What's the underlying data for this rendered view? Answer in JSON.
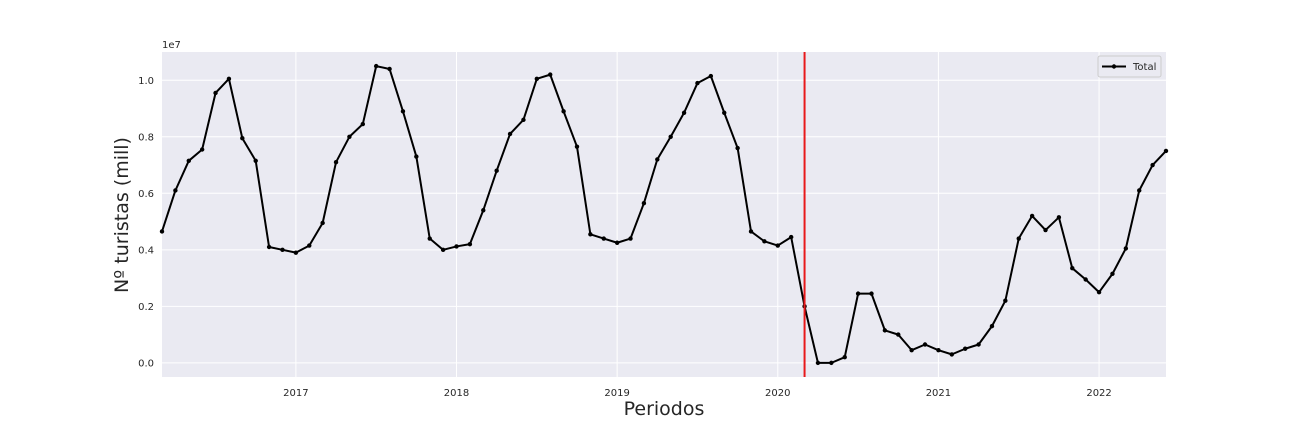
{
  "chart_data": {
    "type": "line",
    "xlabel": "Periodos",
    "ylabel": "Nº turistas (mill)",
    "offset_text": "1e7",
    "x_ticks": [
      "2017",
      "2018",
      "2019",
      "2020",
      "2021",
      "2022"
    ],
    "y_ticks": [
      "0.0",
      "0.2",
      "0.4",
      "0.6",
      "0.8",
      "1.0"
    ],
    "xlim": [
      "2016-03",
      "2022-06"
    ],
    "ylim": [
      -0.05,
      1.1
    ],
    "grid": true,
    "legend_position": "top-right",
    "vertical_marker": {
      "x": "2020-03",
      "color": "#e8191b"
    },
    "colors": {
      "background": "#eaeaf2",
      "grid": "#ffffff",
      "line": "#000000"
    },
    "series": [
      {
        "name": "Total",
        "x": [
          "2016-03",
          "2016-04",
          "2016-05",
          "2016-06",
          "2016-07",
          "2016-08",
          "2016-09",
          "2016-10",
          "2016-11",
          "2016-12",
          "2017-01",
          "2017-02",
          "2017-03",
          "2017-04",
          "2017-05",
          "2017-06",
          "2017-07",
          "2017-08",
          "2017-09",
          "2017-10",
          "2017-11",
          "2017-12",
          "2018-01",
          "2018-02",
          "2018-03",
          "2018-04",
          "2018-05",
          "2018-06",
          "2018-07",
          "2018-08",
          "2018-09",
          "2018-10",
          "2018-11",
          "2018-12",
          "2019-01",
          "2019-02",
          "2019-03",
          "2019-04",
          "2019-05",
          "2019-06",
          "2019-07",
          "2019-08",
          "2019-09",
          "2019-10",
          "2019-11",
          "2019-12",
          "2020-01",
          "2020-02",
          "2020-03",
          "2020-04",
          "2020-05",
          "2020-06",
          "2020-07",
          "2020-08",
          "2020-09",
          "2020-10",
          "2020-11",
          "2020-12",
          "2021-01",
          "2021-02",
          "2021-03",
          "2021-04",
          "2021-05",
          "2021-06",
          "2021-07",
          "2021-08",
          "2021-09",
          "2021-10",
          "2021-11",
          "2021-12",
          "2022-01",
          "2022-02",
          "2022-03",
          "2022-04",
          "2022-05",
          "2022-06"
        ],
        "values": [
          0.465,
          0.61,
          0.715,
          0.755,
          0.955,
          1.005,
          0.795,
          0.715,
          0.41,
          0.4,
          0.39,
          0.415,
          0.495,
          0.71,
          0.8,
          0.845,
          1.05,
          1.04,
          0.89,
          0.73,
          0.44,
          0.4,
          0.412,
          0.42,
          0.54,
          0.68,
          0.81,
          0.86,
          1.005,
          1.02,
          0.89,
          0.765,
          0.455,
          0.44,
          0.425,
          0.44,
          0.565,
          0.72,
          0.8,
          0.885,
          0.99,
          1.015,
          0.885,
          0.76,
          0.465,
          0.43,
          0.415,
          0.445,
          0.2,
          0.0,
          0.0,
          0.02,
          0.245,
          0.245,
          0.115,
          0.1,
          0.045,
          0.065,
          0.045,
          0.03,
          0.05,
          0.065,
          0.13,
          0.22,
          0.44,
          0.52,
          0.47,
          0.515,
          0.335,
          0.295,
          0.25,
          0.315,
          0.405,
          0.61,
          0.7,
          0.75
        ]
      }
    ]
  }
}
